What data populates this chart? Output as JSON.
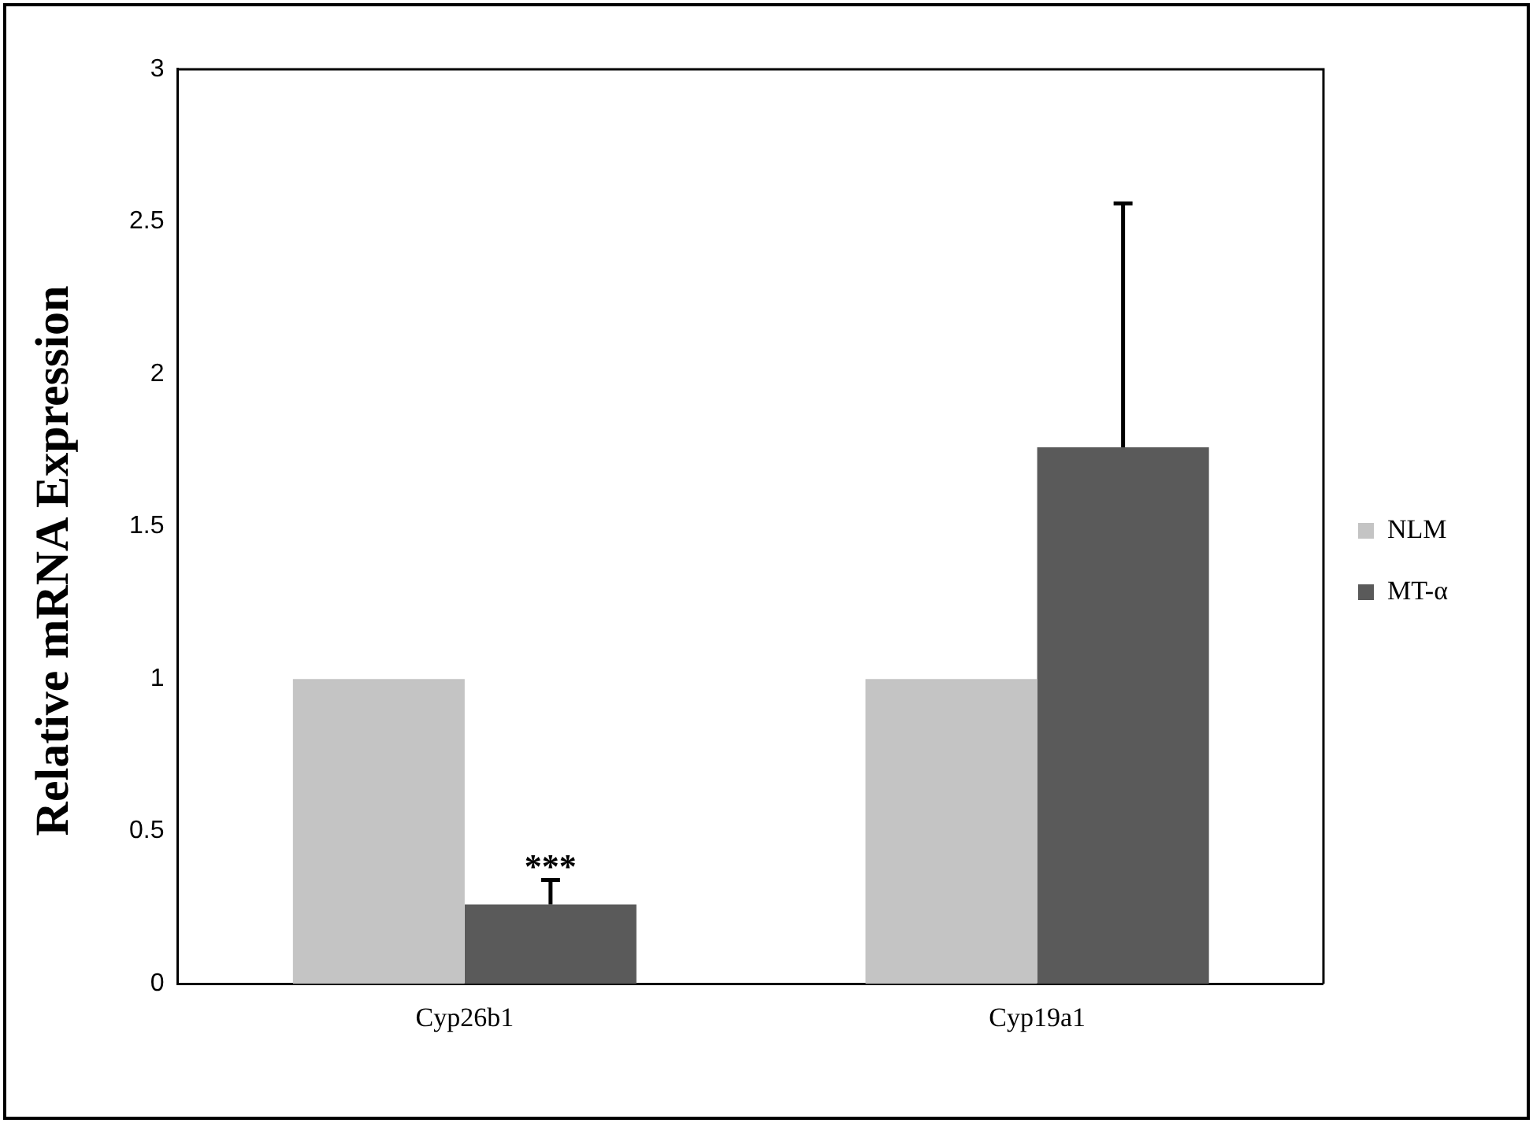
{
  "chart_data": {
    "type": "bar",
    "ylabel": "Relative mRNA Expression",
    "categories": [
      "Cyp26b1",
      "Cyp19a1"
    ],
    "series": [
      {
        "name": "NLM",
        "color": "#c4c4c4",
        "values": [
          1.0,
          1.0
        ]
      },
      {
        "name": "MT-α",
        "color": "#5a5a5a",
        "values": [
          0.26,
          1.76
        ],
        "errors": [
          [
            0.26,
            0.34
          ],
          [
            1.76,
            2.56
          ]
        ]
      }
    ],
    "ylim": [
      0,
      3
    ],
    "yticks": [
      0,
      0.5,
      1,
      1.5,
      2,
      2.5,
      3
    ],
    "grid": false,
    "legend": "right",
    "annotations": [
      {
        "text": "***",
        "x": "Cyp26b1",
        "y": 0.34
      }
    ]
  }
}
